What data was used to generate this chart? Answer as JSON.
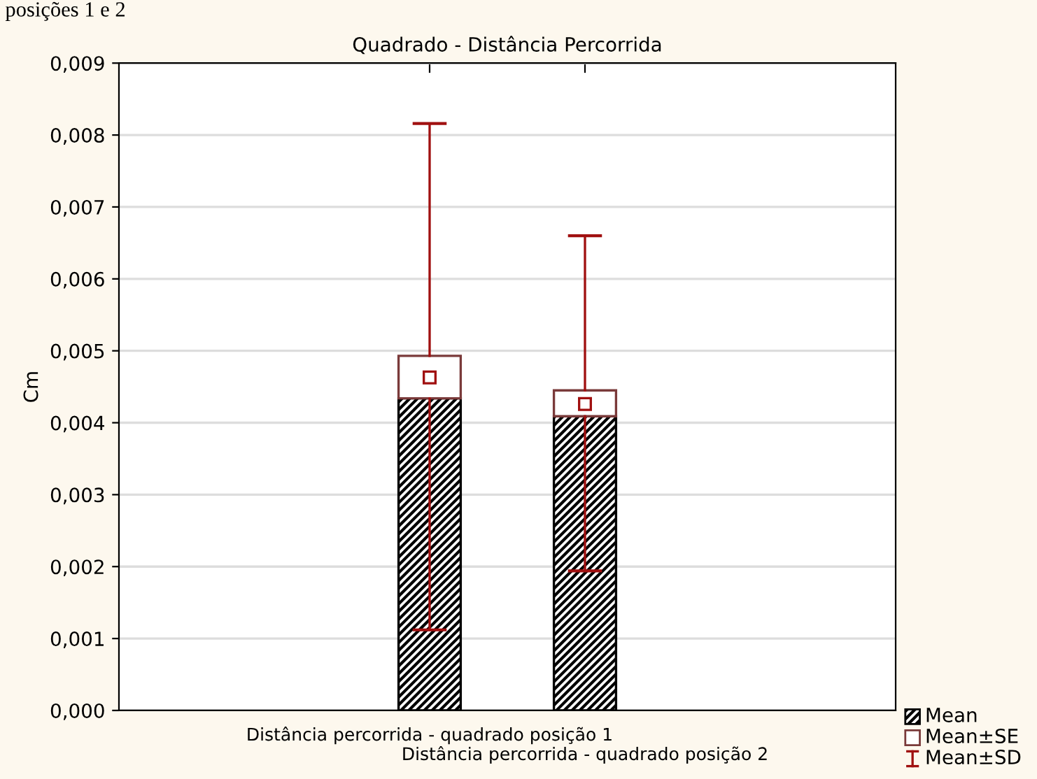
{
  "chart_data": {
    "type": "box",
    "title": "Quadrado - Distância Percorrida",
    "ylabel": "Cm",
    "categories": [
      "Distância percorrida - quadrado posição 1",
      "Distância percorrida - quadrado posição 2"
    ],
    "boxes": [
      {
        "low": 0.00112,
        "q1": 0.00434,
        "q3": 0.00493,
        "high": 0.00816,
        "mean": 0.00463
      },
      {
        "low": 0.00194,
        "q1": 0.00409,
        "q3": 0.00445,
        "high": 0.0066,
        "mean": 0.00426
      }
    ],
    "ylim": [
      0,
      0.009
    ],
    "yticks": [
      {
        "value": 0,
        "label": "0,000"
      },
      {
        "value": 0.001,
        "label": "0,001"
      },
      {
        "value": 0.002,
        "label": "0,002"
      },
      {
        "value": 0.003,
        "label": "0,003"
      },
      {
        "value": 0.004,
        "label": "0,004"
      },
      {
        "value": 0.005,
        "label": "0,005"
      },
      {
        "value": 0.006,
        "label": "0,006"
      },
      {
        "value": 0.007,
        "label": "0,007"
      },
      {
        "value": 0.008,
        "label": "0,008"
      },
      {
        "value": 0.009,
        "label": "0,009"
      }
    ],
    "grid": "y",
    "annotations": [
      "posições 1 e 2",
      "Mean",
      "Mean±SE",
      "Mean±SD"
    ]
  }
}
